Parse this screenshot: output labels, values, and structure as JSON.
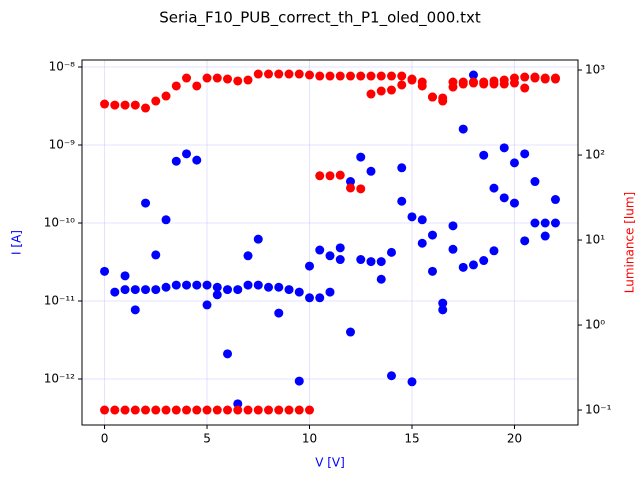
{
  "chart_data": {
    "type": "scatter",
    "title": "Seria_F10_PUB_correct_th_P1_oled_000.txt",
    "xlabel": "V [V]",
    "ylabel": "I [A]",
    "y2label": "Luminance [lum]",
    "xlim": [
      -1.1,
      23.1
    ],
    "xticks": [
      0,
      5,
      10,
      15,
      20
    ],
    "ylim": [
      2.57e-13,
      1.23e-08
    ],
    "yscale": "log",
    "yticks": [
      {
        "value": 1e-12,
        "label": "10⁻¹²"
      },
      {
        "value": 1e-11,
        "label": "10⁻¹¹"
      },
      {
        "value": 1e-10,
        "label": "10⁻¹⁰"
      },
      {
        "value": 1e-09,
        "label": "10⁻⁹"
      },
      {
        "value": 1e-08,
        "label": "10⁻⁸"
      }
    ],
    "y2lim": [
      0.0667,
      1312
    ],
    "y2scale": "log",
    "y2ticks": [
      {
        "value": 0.1,
        "label": "10⁻¹"
      },
      {
        "value": 1,
        "label": "10⁰"
      },
      {
        "value": 10,
        "label": "10¹"
      },
      {
        "value": 100,
        "label": "10²"
      },
      {
        "value": 1000,
        "label": "10³"
      }
    ],
    "grid": true,
    "series": [
      {
        "color": "#0000ff",
        "x": [
          0,
          0.5,
          1,
          1,
          1.5,
          1.5,
          2,
          2,
          2.5,
          2.5,
          3,
          3,
          3.5,
          3.5,
          4,
          4,
          4.5,
          4.5,
          5,
          5,
          5.5,
          5.5,
          6,
          6,
          6.5,
          6.5,
          7,
          7,
          7.5,
          7.5,
          8,
          8.5,
          8.5,
          9,
          9.5,
          9.5,
          10,
          10,
          10.5,
          10.5,
          11,
          11,
          11.5,
          11.5,
          12,
          12,
          12.5,
          12.5,
          13,
          13,
          13.5,
          13.5,
          14,
          14,
          14.5,
          14.5,
          15,
          15,
          15.5,
          15.5,
          16,
          16,
          16.5,
          16.5,
          17,
          17,
          17.5,
          17.5,
          18,
          18,
          18.5,
          18.5,
          19,
          19,
          19.5,
          19.5,
          20,
          20,
          20.5,
          20.5,
          21,
          21,
          21.5,
          21.5,
          22,
          22
        ],
        "values": [
          2.4e-11,
          1.3e-11,
          2.1e-11,
          1.4e-11,
          7.7e-12,
          1.4e-11,
          1.8e-10,
          1.4e-11,
          3.9e-11,
          1.4e-11,
          1.1e-10,
          1.5e-11,
          6.2e-10,
          1.6e-11,
          7.7e-10,
          1.6e-11,
          6.4e-10,
          1.6e-11,
          8.9e-12,
          1.6e-11,
          1.2e-11,
          1.5e-11,
          2.1e-12,
          1.4e-11,
          4.8e-13,
          1.4e-11,
          3.8e-11,
          1.6e-11,
          6.2e-11,
          1.6e-11,
          1.5e-11,
          7e-12,
          1.5e-11,
          1.4e-11,
          9.4e-13,
          1.3e-11,
          2.8e-11,
          1.1e-11,
          4.5e-11,
          1.1e-11,
          3.8e-11,
          1.3e-11,
          4.8e-11,
          3.4e-11,
          4e-12,
          3.4e-10,
          7e-10,
          3.4e-11,
          4.6e-10,
          3.2e-11,
          1.9e-11,
          3.2e-11,
          1.1e-12,
          4.2e-11,
          5.1e-10,
          1.9e-10,
          9.2e-13,
          1.2e-10,
          5.5e-11,
          1.1e-10,
          2.4e-11,
          7e-11,
          7.7e-12,
          9.4e-12,
          4.6e-11,
          9.2e-11,
          1.6e-09,
          2.7e-11,
          7.9e-09,
          2.9e-11,
          7.4e-10,
          3.3e-11,
          2.8e-10,
          4.4e-11,
          9.2e-10,
          2.1e-10,
          5.9e-10,
          1.8e-10,
          7.7e-10,
          5.9e-11,
          3.4e-10,
          1e-10,
          6.8e-11,
          1e-10,
          2e-10,
          1e-10
        ]
      },
      {
        "color": "#ff0000",
        "axis": "y2",
        "x": [
          0,
          0,
          0.5,
          0.5,
          1,
          1,
          1.5,
          1.5,
          2,
          2,
          2.5,
          2.5,
          3,
          3,
          3.5,
          3.5,
          4,
          4,
          4.5,
          4.5,
          5,
          5,
          5.5,
          5.5,
          6,
          6,
          6.5,
          6.5,
          7,
          7,
          7.5,
          7.5,
          8,
          8,
          8.5,
          8.5,
          9,
          9,
          9.5,
          9.5,
          10,
          10,
          10.5,
          10.5,
          11,
          11,
          11.5,
          11.5,
          12,
          12,
          12.5,
          12.5,
          13,
          13,
          13.5,
          13.5,
          14,
          14,
          14.5,
          14.5,
          15,
          15,
          15.5,
          15.5,
          16,
          16,
          16.5,
          16.5,
          17,
          17,
          17.5,
          17.5,
          18,
          18,
          18.5,
          18.5,
          19,
          19,
          19.5,
          19.5,
          20,
          20,
          20.5,
          20.5,
          21,
          21,
          21.5,
          21.5,
          22,
          22
        ],
        "values": [
          398,
          0.1,
          387,
          0.1,
          387,
          0.1,
          387,
          0.1,
          357,
          0.1,
          432,
          0.1,
          494,
          0.1,
          649,
          0.1,
          805,
          0.1,
          649,
          0.1,
          805,
          0.1,
          805,
          0.1,
          784,
          0.1,
          743,
          0.1,
          762,
          0.1,
          897,
          0.1,
          897,
          0.1,
          897,
          0.1,
          897,
          0.1,
          897,
          0.1,
          874,
          0.1,
          850,
          57,
          850,
          57,
          850,
          58,
          850,
          41,
          850,
          40,
          850,
          522,
          850,
          566,
          850,
          582,
          850,
          667,
          784,
          762,
          722,
          649,
          481,
          481,
          469,
          432,
          722,
          631,
          722,
          684,
          722,
          703,
          684,
          722,
          684,
          743,
          684,
          762,
          703,
          805,
          614,
          827,
          805,
          827,
          784,
          805,
          784,
          805
        ]
      }
    ]
  }
}
